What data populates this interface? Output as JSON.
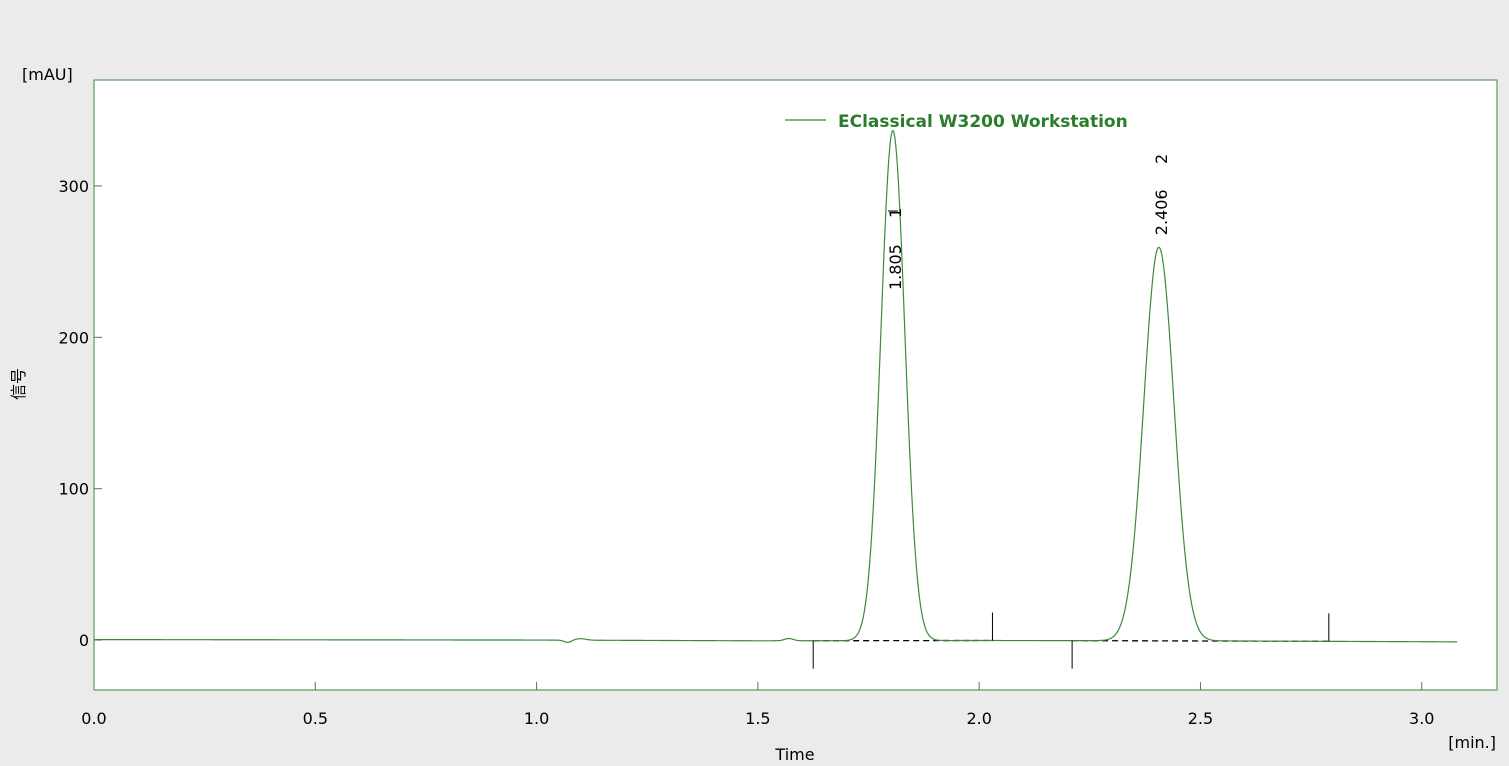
{
  "chart_data": {
    "type": "line",
    "ylabel": "信号",
    "y_unit": "[mAU]",
    "xlabel": "Time",
    "x_unit": "[min.]",
    "xlim": [
      0.0,
      3.17
    ],
    "ylim": [
      -33,
      370
    ],
    "x_ticks": [
      "0.0",
      "0.5",
      "1.0",
      "1.5",
      "2.0",
      "2.5",
      "3.0"
    ],
    "y_ticks": [
      "0",
      "100",
      "200",
      "300"
    ],
    "legend": {
      "position": "top-center",
      "label": "EClassical W3200 Workstation"
    },
    "colors": {
      "trace": "#3b8a3b",
      "frame": "#3b8a3b",
      "background": "#ffffff",
      "page": "#ebebeb",
      "legend_text": "#2a7d2a"
    },
    "series": [
      {
        "name": "EClassical W3200 Workstation",
        "x_start": 0.0,
        "x_end": 3.08,
        "baseline": [
          [
            0.0,
            0.3
          ],
          [
            1.0,
            0.0
          ],
          [
            1.5,
            -0.5
          ],
          [
            2.0,
            -0.3
          ],
          [
            2.5,
            -0.5
          ],
          [
            3.08,
            -1.2
          ]
        ],
        "wiggles": [
          {
            "center": 1.07,
            "amplitude": -1.5,
            "width": 0.008
          },
          {
            "center": 1.1,
            "amplitude": 1.0,
            "width": 0.012
          },
          {
            "center": 1.57,
            "amplitude": 1.5,
            "width": 0.01
          }
        ]
      }
    ],
    "peaks": [
      {
        "number": "1",
        "retention_time": "1.805",
        "rt": 1.805,
        "height": 337,
        "sigma": 0.027,
        "start": 1.625,
        "end": 2.03
      },
      {
        "number": "2",
        "retention_time": "2.406",
        "rt": 2.406,
        "height": 260,
        "sigma": 0.034,
        "start": 2.21,
        "end": 2.79
      }
    ]
  }
}
